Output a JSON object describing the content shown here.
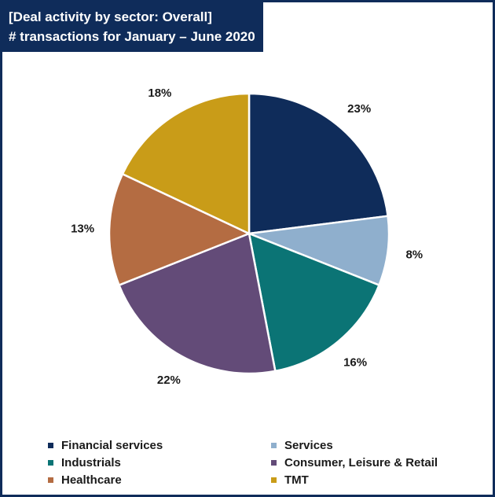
{
  "chart_data": {
    "type": "pie",
    "title": "[Deal activity by sector: Overall]",
    "subtitle": "# transactions for January – June 2020",
    "slices": [
      {
        "name": "Financial services",
        "value": 23,
        "label": "23%",
        "color": "#0f2c5a"
      },
      {
        "name": "Services",
        "value": 8,
        "label": "8%",
        "color": "#8fafcd"
      },
      {
        "name": "Industrials",
        "value": 16,
        "label": "16%",
        "color": "#0b7475"
      },
      {
        "name": "Consumer, Leisure & Retail",
        "value": 22,
        "label": "22%",
        "color": "#634b78"
      },
      {
        "name": "Healthcare",
        "value": 13,
        "label": "13%",
        "color": "#b46c42"
      },
      {
        "name": "TMT",
        "value": 18,
        "label": "18%",
        "color": "#c99c18"
      }
    ],
    "legend_position": "bottom"
  }
}
